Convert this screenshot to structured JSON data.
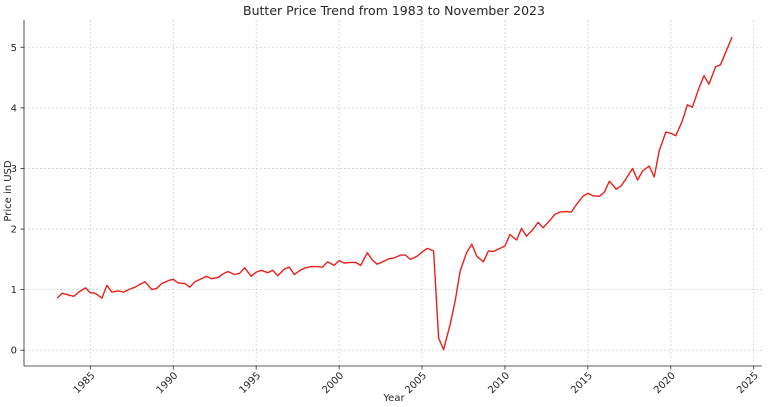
{
  "chart_data": {
    "type": "line",
    "title": "Butter Price Trend from 1983 to November 2023",
    "xlabel": "Year",
    "ylabel": "Price in USD",
    "xlim": [
      1981.0,
      2025.5
    ],
    "ylim": [
      -0.26,
      5.45
    ],
    "x_ticks": [
      1985,
      1990,
      1995,
      2000,
      2005,
      2010,
      2015,
      2020,
      2025
    ],
    "y_ticks": [
      0,
      1,
      2,
      3,
      4,
      5
    ],
    "grid": true,
    "line_color": "#e8211c",
    "series": [
      {
        "x": [
          1983.0,
          1983.3,
          1983.7,
          1984.0,
          1984.3,
          1984.7,
          1985.0,
          1985.3,
          1985.7,
          1986.0,
          1986.3,
          1986.7,
          1987.0,
          1987.3,
          1987.7,
          1988.0,
          1988.3,
          1988.7,
          1989.0,
          1989.3,
          1989.7,
          1990.0,
          1990.3,
          1990.7,
          1991.0,
          1991.3,
          1991.7,
          1992.0,
          1992.3,
          1992.7,
          1993.0,
          1993.3,
          1993.7,
          1994.0,
          1994.3,
          1994.7,
          1995.0,
          1995.3,
          1995.7,
          1996.0,
          1996.3,
          1996.7,
          1997.0,
          1997.3,
          1997.7,
          1998.0,
          1998.3,
          1998.7,
          1999.0,
          1999.3,
          1999.7,
          2000.0,
          2000.3,
          2000.7,
          2001.0,
          2001.3,
          2001.7,
          2002.0,
          2002.3,
          2002.7,
          2003.0,
          2003.3,
          2003.7,
          2004.0,
          2004.3,
          2004.7,
          2005.0,
          2005.3,
          2005.7,
          2006.0,
          2006.3,
          2006.7,
          2007.0,
          2007.3,
          2007.7,
          2008.0,
          2008.3,
          2008.7,
          2009.0,
          2009.3,
          2009.7,
          2010.0,
          2010.3,
          2010.7,
          2011.0,
          2011.3,
          2011.7,
          2012.0,
          2012.3,
          2012.7,
          2013.0,
          2013.3,
          2013.7,
          2014.0,
          2014.3,
          2014.7,
          2015.0,
          2015.3,
          2015.7,
          2016.0,
          2016.3,
          2016.7,
          2017.0,
          2017.3,
          2017.7,
          2018.0,
          2018.3,
          2018.7,
          2019.0,
          2019.3,
          2019.7,
          2020.0,
          2020.3,
          2020.7,
          2021.0,
          2021.3,
          2021.7,
          2022.0,
          2022.3,
          2022.7,
          2023.0,
          2023.3,
          2023.7
        ],
        "values": [
          0.86,
          0.94,
          0.91,
          0.89,
          0.96,
          1.03,
          0.95,
          0.94,
          0.86,
          1.07,
          0.96,
          0.98,
          0.96,
          1.0,
          1.04,
          1.09,
          1.13,
          1.0,
          1.02,
          1.1,
          1.15,
          1.17,
          1.11,
          1.1,
          1.04,
          1.13,
          1.18,
          1.22,
          1.18,
          1.2,
          1.26,
          1.3,
          1.25,
          1.27,
          1.36,
          1.22,
          1.29,
          1.32,
          1.28,
          1.32,
          1.23,
          1.34,
          1.37,
          1.25,
          1.33,
          1.36,
          1.38,
          1.38,
          1.37,
          1.46,
          1.4,
          1.48,
          1.44,
          1.45,
          1.45,
          1.4,
          1.61,
          1.49,
          1.42,
          1.47,
          1.51,
          1.52,
          1.57,
          1.57,
          1.5,
          1.55,
          1.62,
          1.68,
          1.64,
          0.2,
          0.01,
          0.43,
          0.82,
          1.31,
          1.62,
          1.75,
          1.55,
          1.46,
          1.64,
          1.63,
          1.68,
          1.72,
          1.91,
          1.82,
          2.01,
          1.88,
          2.0,
          2.11,
          2.02,
          2.14,
          2.24,
          2.28,
          2.29,
          2.28,
          2.4,
          2.54,
          2.59,
          2.55,
          2.54,
          2.61,
          2.79,
          2.66,
          2.71,
          2.83,
          3.0,
          2.81,
          2.96,
          3.04,
          2.86,
          3.29,
          3.6,
          3.58,
          3.54,
          3.79,
          4.05,
          4.01,
          4.33,
          4.53,
          4.39,
          4.68,
          4.71,
          4.91,
          5.17
        ]
      }
    ]
  }
}
